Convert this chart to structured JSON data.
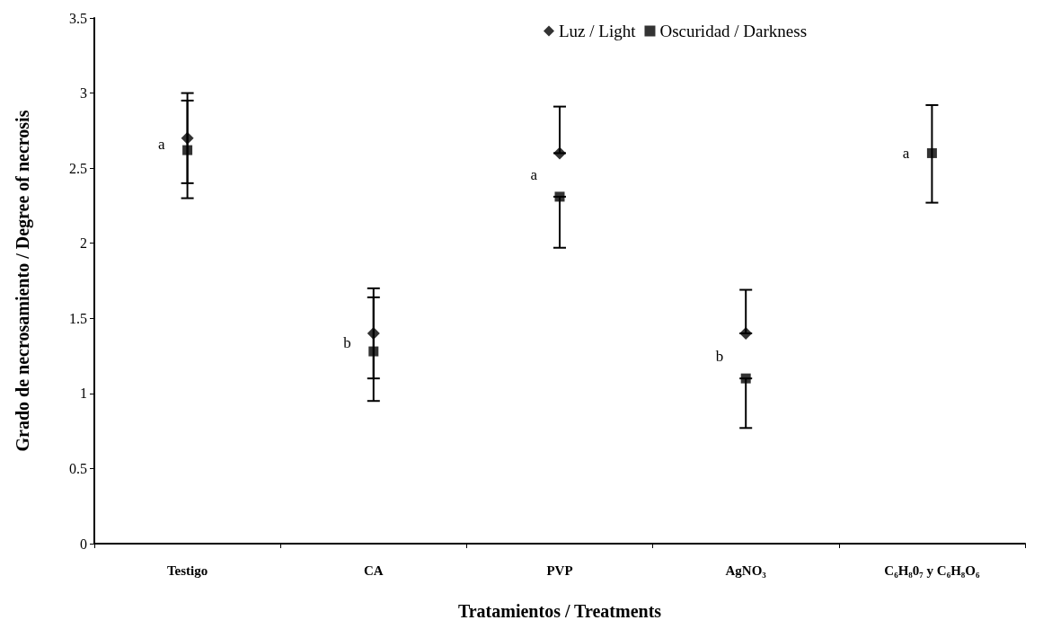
{
  "chart_data": {
    "type": "scatter",
    "xlabel": "Tratamientos / Treatments",
    "ylabel": "Grado de necrosamiento / Degree of necrosis",
    "categories": [
      "Testigo",
      "CA",
      "PVP",
      "AgNO₃",
      "C₆H₈0₇ y C₆H₈O₆"
    ],
    "series": [
      {
        "name": "Luz / Light",
        "color": "#000000",
        "marker": "diamond",
        "values": [
          2.7,
          1.4,
          2.6,
          1.4,
          null
        ],
        "errors": [
          [
            2.4,
            3.0
          ],
          [
            1.1,
            1.7
          ],
          [
            2.6,
            2.91
          ],
          [
            1.4,
            1.69
          ],
          null
        ]
      },
      {
        "name": "Oscuridad / Darkness",
        "color": "#000000",
        "marker": "square",
        "values": [
          2.62,
          1.28,
          2.31,
          1.1,
          2.6
        ],
        "errors": [
          [
            2.3,
            2.95
          ],
          [
            0.95,
            1.64
          ],
          [
            1.97,
            2.31
          ],
          [
            0.77,
            1.1
          ],
          [
            2.27,
            2.92
          ]
        ]
      }
    ],
    "ylim": [
      0,
      3.5
    ],
    "yticks": [
      0,
      0.5,
      1,
      1.5,
      2,
      2.5,
      3,
      3.5
    ],
    "grid": false,
    "legend": "top",
    "annotations": [
      "a",
      "b",
      "a",
      "b",
      "a"
    ]
  }
}
